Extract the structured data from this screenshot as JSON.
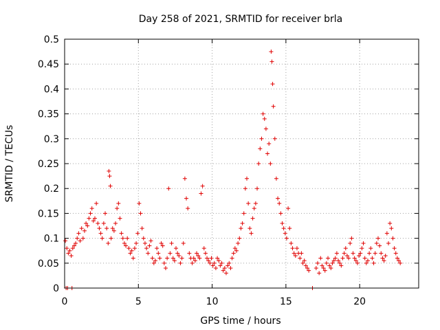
{
  "chart_data": {
    "type": "scatter",
    "title": "Day 258 of 2021, SRMTID for receiver brla",
    "xlabel": "GPS time / hours",
    "ylabel": "SRMTID / TECUs",
    "xlim": [
      0,
      24
    ],
    "ylim": [
      0,
      0.5
    ],
    "xticks": [
      0,
      5,
      10,
      15,
      20
    ],
    "xtick_labels": [
      "0",
      "5",
      "10",
      "15",
      "20"
    ],
    "yticks": [
      0,
      0.05,
      0.1,
      0.15,
      0.2,
      0.25,
      0.3,
      0.35,
      0.4,
      0.45,
      0.5
    ],
    "ytick_labels": [
      "0",
      "0.05",
      "0.1",
      "0.15",
      "0.2",
      "0.25",
      "0.3",
      "0.35",
      "0.4",
      "0.45",
      "0.5"
    ],
    "grid": true,
    "marker_color": "#e00000",
    "series": [
      {
        "name": "SRMTID",
        "marker": "plus",
        "x": [
          0.05,
          0.15,
          0.25,
          0.35,
          0.45,
          0.55,
          0.65,
          0.75,
          0.85,
          0.95,
          1.05,
          1.15,
          1.25,
          1.35,
          1.45,
          1.55,
          1.65,
          1.75,
          1.85,
          1.95,
          2.05,
          2.15,
          2.25,
          2.35,
          2.45,
          2.55,
          2.65,
          2.75,
          2.85,
          2.95,
          3.0,
          3.05,
          3.1,
          3.15,
          3.25,
          3.35,
          3.45,
          3.55,
          3.65,
          3.75,
          3.85,
          3.95,
          4.05,
          4.15,
          4.25,
          4.35,
          4.45,
          4.55,
          4.65,
          4.75,
          4.85,
          4.95,
          5.05,
          5.15,
          5.25,
          5.35,
          5.45,
          5.55,
          5.65,
          5.75,
          5.85,
          5.95,
          6.05,
          6.15,
          6.25,
          6.35,
          6.45,
          6.55,
          6.65,
          6.75,
          6.85,
          6.95,
          7.05,
          7.15,
          7.25,
          7.35,
          7.45,
          7.55,
          7.65,
          7.75,
          7.85,
          7.95,
          8.05,
          8.15,
          8.25,
          8.35,
          8.45,
          8.55,
          8.65,
          8.75,
          8.85,
          8.95,
          9.05,
          9.15,
          9.25,
          9.35,
          9.45,
          9.55,
          9.65,
          9.75,
          9.85,
          9.95,
          10.05,
          10.15,
          10.25,
          10.35,
          10.45,
          10.55,
          10.65,
          10.75,
          10.85,
          10.95,
          11.05,
          11.15,
          11.25,
          11.35,
          11.45,
          11.55,
          11.65,
          11.75,
          11.85,
          11.95,
          12.05,
          12.15,
          12.25,
          12.35,
          12.45,
          12.55,
          12.65,
          12.75,
          12.85,
          12.95,
          13.05,
          13.15,
          13.25,
          13.35,
          13.45,
          13.55,
          13.65,
          13.75,
          13.85,
          13.95,
          14.0,
          14.05,
          14.1,
          14.15,
          14.25,
          14.35,
          14.45,
          14.55,
          14.65,
          14.75,
          14.85,
          14.95,
          15.05,
          15.15,
          15.25,
          15.35,
          15.45,
          15.55,
          15.65,
          15.75,
          15.85,
          15.95,
          16.05,
          16.15,
          16.25,
          16.35,
          16.45,
          16.55,
          17.05,
          17.15,
          17.25,
          17.35,
          17.45,
          17.55,
          17.65,
          17.75,
          17.85,
          17.95,
          18.05,
          18.15,
          18.25,
          18.35,
          18.45,
          18.55,
          18.65,
          18.75,
          18.85,
          18.95,
          19.05,
          19.15,
          19.25,
          19.35,
          19.45,
          19.55,
          19.65,
          19.75,
          19.85,
          19.95,
          20.05,
          20.15,
          20.25,
          20.35,
          20.45,
          20.55,
          20.65,
          20.75,
          20.85,
          20.95,
          21.05,
          21.15,
          21.25,
          21.35,
          21.45,
          21.55,
          21.65,
          21.75,
          21.85,
          21.95,
          22.05,
          22.15,
          22.25,
          22.35,
          22.45,
          22.55,
          22.65,
          22.75,
          0.1,
          0.2,
          0.5,
          16.8
        ],
        "y": [
          0.095,
          0.08,
          0.07,
          0.075,
          0.065,
          0.08,
          0.085,
          0.09,
          0.1,
          0.11,
          0.095,
          0.12,
          0.1,
          0.115,
          0.13,
          0.125,
          0.14,
          0.15,
          0.16,
          0.135,
          0.14,
          0.17,
          0.13,
          0.12,
          0.11,
          0.1,
          0.13,
          0.15,
          0.12,
          0.09,
          0.235,
          0.225,
          0.205,
          0.1,
          0.12,
          0.115,
          0.13,
          0.16,
          0.17,
          0.14,
          0.11,
          0.1,
          0.09,
          0.085,
          0.1,
          0.08,
          0.07,
          0.075,
          0.06,
          0.08,
          0.09,
          0.11,
          0.17,
          0.15,
          0.12,
          0.1,
          0.09,
          0.08,
          0.07,
          0.085,
          0.095,
          0.06,
          0.05,
          0.055,
          0.08,
          0.07,
          0.06,
          0.09,
          0.085,
          0.05,
          0.04,
          0.06,
          0.2,
          0.07,
          0.09,
          0.06,
          0.055,
          0.08,
          0.07,
          0.065,
          0.05,
          0.06,
          0.09,
          0.22,
          0.18,
          0.16,
          0.07,
          0.06,
          0.05,
          0.06,
          0.055,
          0.07,
          0.065,
          0.06,
          0.19,
          0.205,
          0.08,
          0.07,
          0.06,
          0.055,
          0.05,
          0.06,
          0.045,
          0.05,
          0.04,
          0.06,
          0.055,
          0.045,
          0.05,
          0.035,
          0.04,
          0.03,
          0.045,
          0.05,
          0.04,
          0.06,
          0.07,
          0.08,
          0.075,
          0.09,
          0.1,
          0.12,
          0.13,
          0.15,
          0.2,
          0.22,
          0.17,
          0.12,
          0.11,
          0.14,
          0.16,
          0.17,
          0.2,
          0.25,
          0.28,
          0.3,
          0.35,
          0.34,
          0.32,
          0.27,
          0.29,
          0.25,
          0.475,
          0.455,
          0.41,
          0.365,
          0.3,
          0.22,
          0.18,
          0.17,
          0.15,
          0.13,
          0.12,
          0.11,
          0.1,
          0.16,
          0.12,
          0.09,
          0.08,
          0.07,
          0.065,
          0.08,
          0.07,
          0.06,
          0.07,
          0.05,
          0.055,
          0.045,
          0.04,
          0.035,
          0.04,
          0.05,
          0.03,
          0.06,
          0.045,
          0.04,
          0.035,
          0.05,
          0.06,
          0.045,
          0.04,
          0.05,
          0.055,
          0.06,
          0.07,
          0.055,
          0.05,
          0.045,
          0.06,
          0.07,
          0.08,
          0.065,
          0.06,
          0.09,
          0.1,
          0.07,
          0.06,
          0.055,
          0.05,
          0.065,
          0.07,
          0.08,
          0.09,
          0.06,
          0.05,
          0.055,
          0.07,
          0.08,
          0.06,
          0.05,
          0.07,
          0.09,
          0.1,
          0.085,
          0.07,
          0.06,
          0.055,
          0.065,
          0.11,
          0.09,
          0.13,
          0.12,
          0.1,
          0.08,
          0.07,
          0.06,
          0.055,
          0.05,
          0.0,
          0.0,
          0.0,
          0.0
        ]
      }
    ]
  }
}
